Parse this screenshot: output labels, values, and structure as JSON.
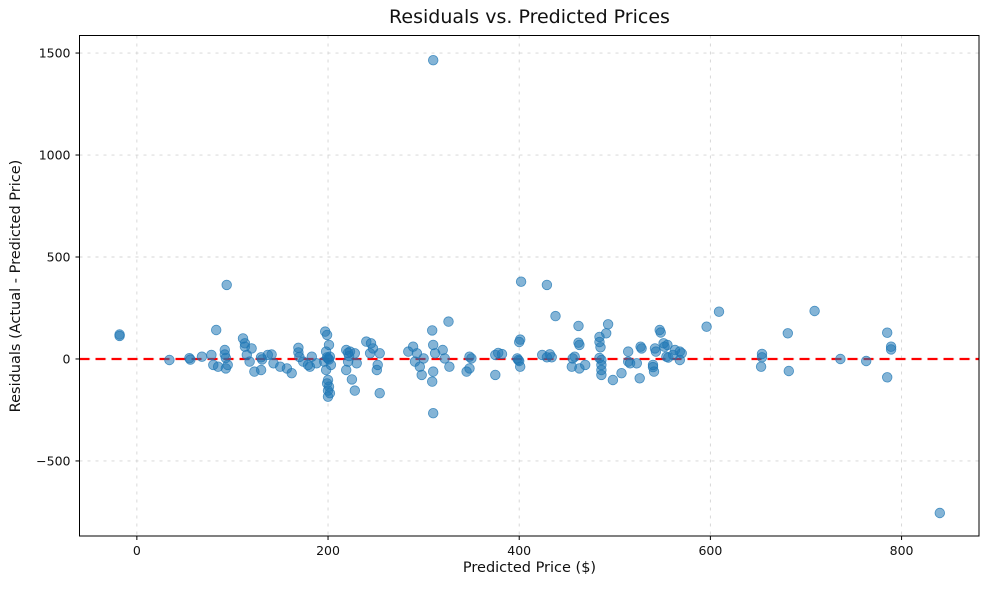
{
  "figure": {
    "title": "Residuals vs. Predicted Prices",
    "xlabel": "Predicted Price ($)",
    "ylabel": "Residuals (Actual - Predicted Price)"
  },
  "chart_data": {
    "type": "scatter",
    "title": "Residuals vs. Predicted Prices",
    "xlabel": "Predicted Price ($)",
    "ylabel": "Residuals (Actual - Predicted Price)",
    "xlim": [
      -60,
      881
    ],
    "ylim": [
      -868,
      1586
    ],
    "x_ticks": [
      0,
      200,
      400,
      600,
      800
    ],
    "y_ticks": [
      -500,
      0,
      500,
      1000,
      1500
    ],
    "grid": true,
    "grid_color": "#d4d4d4",
    "point_color": "#1f77b4",
    "point_opacity": 0.55,
    "point_radius": 4.8,
    "zero_line": {
      "y": 0,
      "color": "#ff0000",
      "style": "dashed",
      "width": 2.3
    },
    "points": [
      [
        -18,
        120
      ],
      [
        -18,
        113
      ],
      [
        34,
        -5
      ],
      [
        55,
        4
      ],
      [
        56,
        -3
      ],
      [
        68,
        11
      ],
      [
        78,
        20
      ],
      [
        80,
        -29
      ],
      [
        83,
        142
      ],
      [
        85,
        -38
      ],
      [
        92,
        44
      ],
      [
        92,
        22
      ],
      [
        93,
        5
      ],
      [
        93,
        -46
      ],
      [
        94,
        363
      ],
      [
        95,
        -29
      ],
      [
        111,
        101
      ],
      [
        113,
        77
      ],
      [
        113,
        60
      ],
      [
        115,
        20
      ],
      [
        120,
        52
      ],
      [
        118,
        -13
      ],
      [
        123,
        -62
      ],
      [
        130,
        8
      ],
      [
        131,
        -2
      ],
      [
        130,
        -54
      ],
      [
        137,
        20
      ],
      [
        141,
        22
      ],
      [
        143,
        -21
      ],
      [
        150,
        -38
      ],
      [
        157,
        -46
      ],
      [
        162,
        -70
      ],
      [
        169,
        55
      ],
      [
        169,
        32
      ],
      [
        170,
        10
      ],
      [
        174,
        -13
      ],
      [
        179,
        -29
      ],
      [
        181,
        -38
      ],
      [
        183,
        11
      ],
      [
        188,
        -21
      ],
      [
        196,
        -13
      ],
      [
        197,
        134
      ],
      [
        199,
        118
      ],
      [
        201,
        69
      ],
      [
        198,
        36
      ],
      [
        199,
        8
      ],
      [
        200,
        3
      ],
      [
        201,
        -2
      ],
      [
        202,
        11
      ],
      [
        203,
        -29
      ],
      [
        198,
        -54
      ],
      [
        200,
        -103
      ],
      [
        199,
        -120
      ],
      [
        201,
        -136
      ],
      [
        200,
        -155
      ],
      [
        202,
        -168
      ],
      [
        200,
        -185
      ],
      [
        219,
        44
      ],
      [
        221,
        30
      ],
      [
        222,
        14
      ],
      [
        223,
        36
      ],
      [
        228,
        28
      ],
      [
        221,
        -13
      ],
      [
        230,
        -21
      ],
      [
        219,
        -54
      ],
      [
        225,
        -100
      ],
      [
        228,
        -155
      ],
      [
        240,
        85
      ],
      [
        245,
        77
      ],
      [
        247,
        52
      ],
      [
        244,
        28
      ],
      [
        254,
        28
      ],
      [
        252,
        -29
      ],
      [
        251,
        -54
      ],
      [
        254,
        -168
      ],
      [
        284,
        36
      ],
      [
        289,
        60
      ],
      [
        293,
        28
      ],
      [
        291,
        -13
      ],
      [
        296,
        -38
      ],
      [
        298,
        -78
      ],
      [
        300,
        3
      ],
      [
        309,
        140
      ],
      [
        310,
        69
      ],
      [
        312,
        28
      ],
      [
        310,
        -62
      ],
      [
        309,
        -111
      ],
      [
        310,
        -266
      ],
      [
        310,
        1465
      ],
      [
        326,
        183
      ],
      [
        320,
        44
      ],
      [
        322,
        3
      ],
      [
        327,
        -38
      ],
      [
        345,
        -62
      ],
      [
        348,
        11
      ],
      [
        350,
        3
      ],
      [
        348,
        -46
      ],
      [
        375,
        20
      ],
      [
        378,
        30
      ],
      [
        382,
        24
      ],
      [
        375,
        -78
      ],
      [
        398,
        3
      ],
      [
        399,
        -5
      ],
      [
        400,
        -10
      ],
      [
        401,
        -38
      ],
      [
        401,
        95
      ],
      [
        400,
        83
      ],
      [
        402,
        379
      ],
      [
        424,
        20
      ],
      [
        429,
        363
      ],
      [
        429,
        8
      ],
      [
        432,
        23
      ],
      [
        434,
        8
      ],
      [
        438,
        210
      ],
      [
        455,
        -38
      ],
      [
        456,
        3
      ],
      [
        458,
        11
      ],
      [
        462,
        162
      ],
      [
        462,
        80
      ],
      [
        463,
        69
      ],
      [
        463,
        -46
      ],
      [
        469,
        -29
      ],
      [
        484,
        108
      ],
      [
        484,
        83
      ],
      [
        485,
        57
      ],
      [
        484,
        5
      ],
      [
        486,
        -5
      ],
      [
        486,
        -29
      ],
      [
        486,
        -54
      ],
      [
        486,
        -78
      ],
      [
        491,
        126
      ],
      [
        493,
        170
      ],
      [
        498,
        -103
      ],
      [
        507,
        -70
      ],
      [
        514,
        36
      ],
      [
        514,
        -13
      ],
      [
        516,
        -21
      ],
      [
        523,
        -21
      ],
      [
        526,
        -95
      ],
      [
        527,
        60
      ],
      [
        528,
        52
      ],
      [
        540,
        -29
      ],
      [
        540,
        -40
      ],
      [
        541,
        -62
      ],
      [
        542,
        52
      ],
      [
        543,
        36
      ],
      [
        547,
        142
      ],
      [
        548,
        130
      ],
      [
        551,
        77
      ],
      [
        552,
        60
      ],
      [
        555,
        69
      ],
      [
        554,
        11
      ],
      [
        556,
        7
      ],
      [
        561,
        20
      ],
      [
        563,
        44
      ],
      [
        568,
        36
      ],
      [
        570,
        28
      ],
      [
        568,
        -5
      ],
      [
        596,
        158
      ],
      [
        609,
        232
      ],
      [
        654,
        25
      ],
      [
        654,
        8
      ],
      [
        653,
        -38
      ],
      [
        681,
        126
      ],
      [
        682,
        -59
      ],
      [
        709,
        235
      ],
      [
        736,
        0
      ],
      [
        763,
        -10
      ],
      [
        785,
        129
      ],
      [
        789,
        60
      ],
      [
        789,
        47
      ],
      [
        785,
        -90
      ],
      [
        840,
        -755
      ]
    ]
  }
}
